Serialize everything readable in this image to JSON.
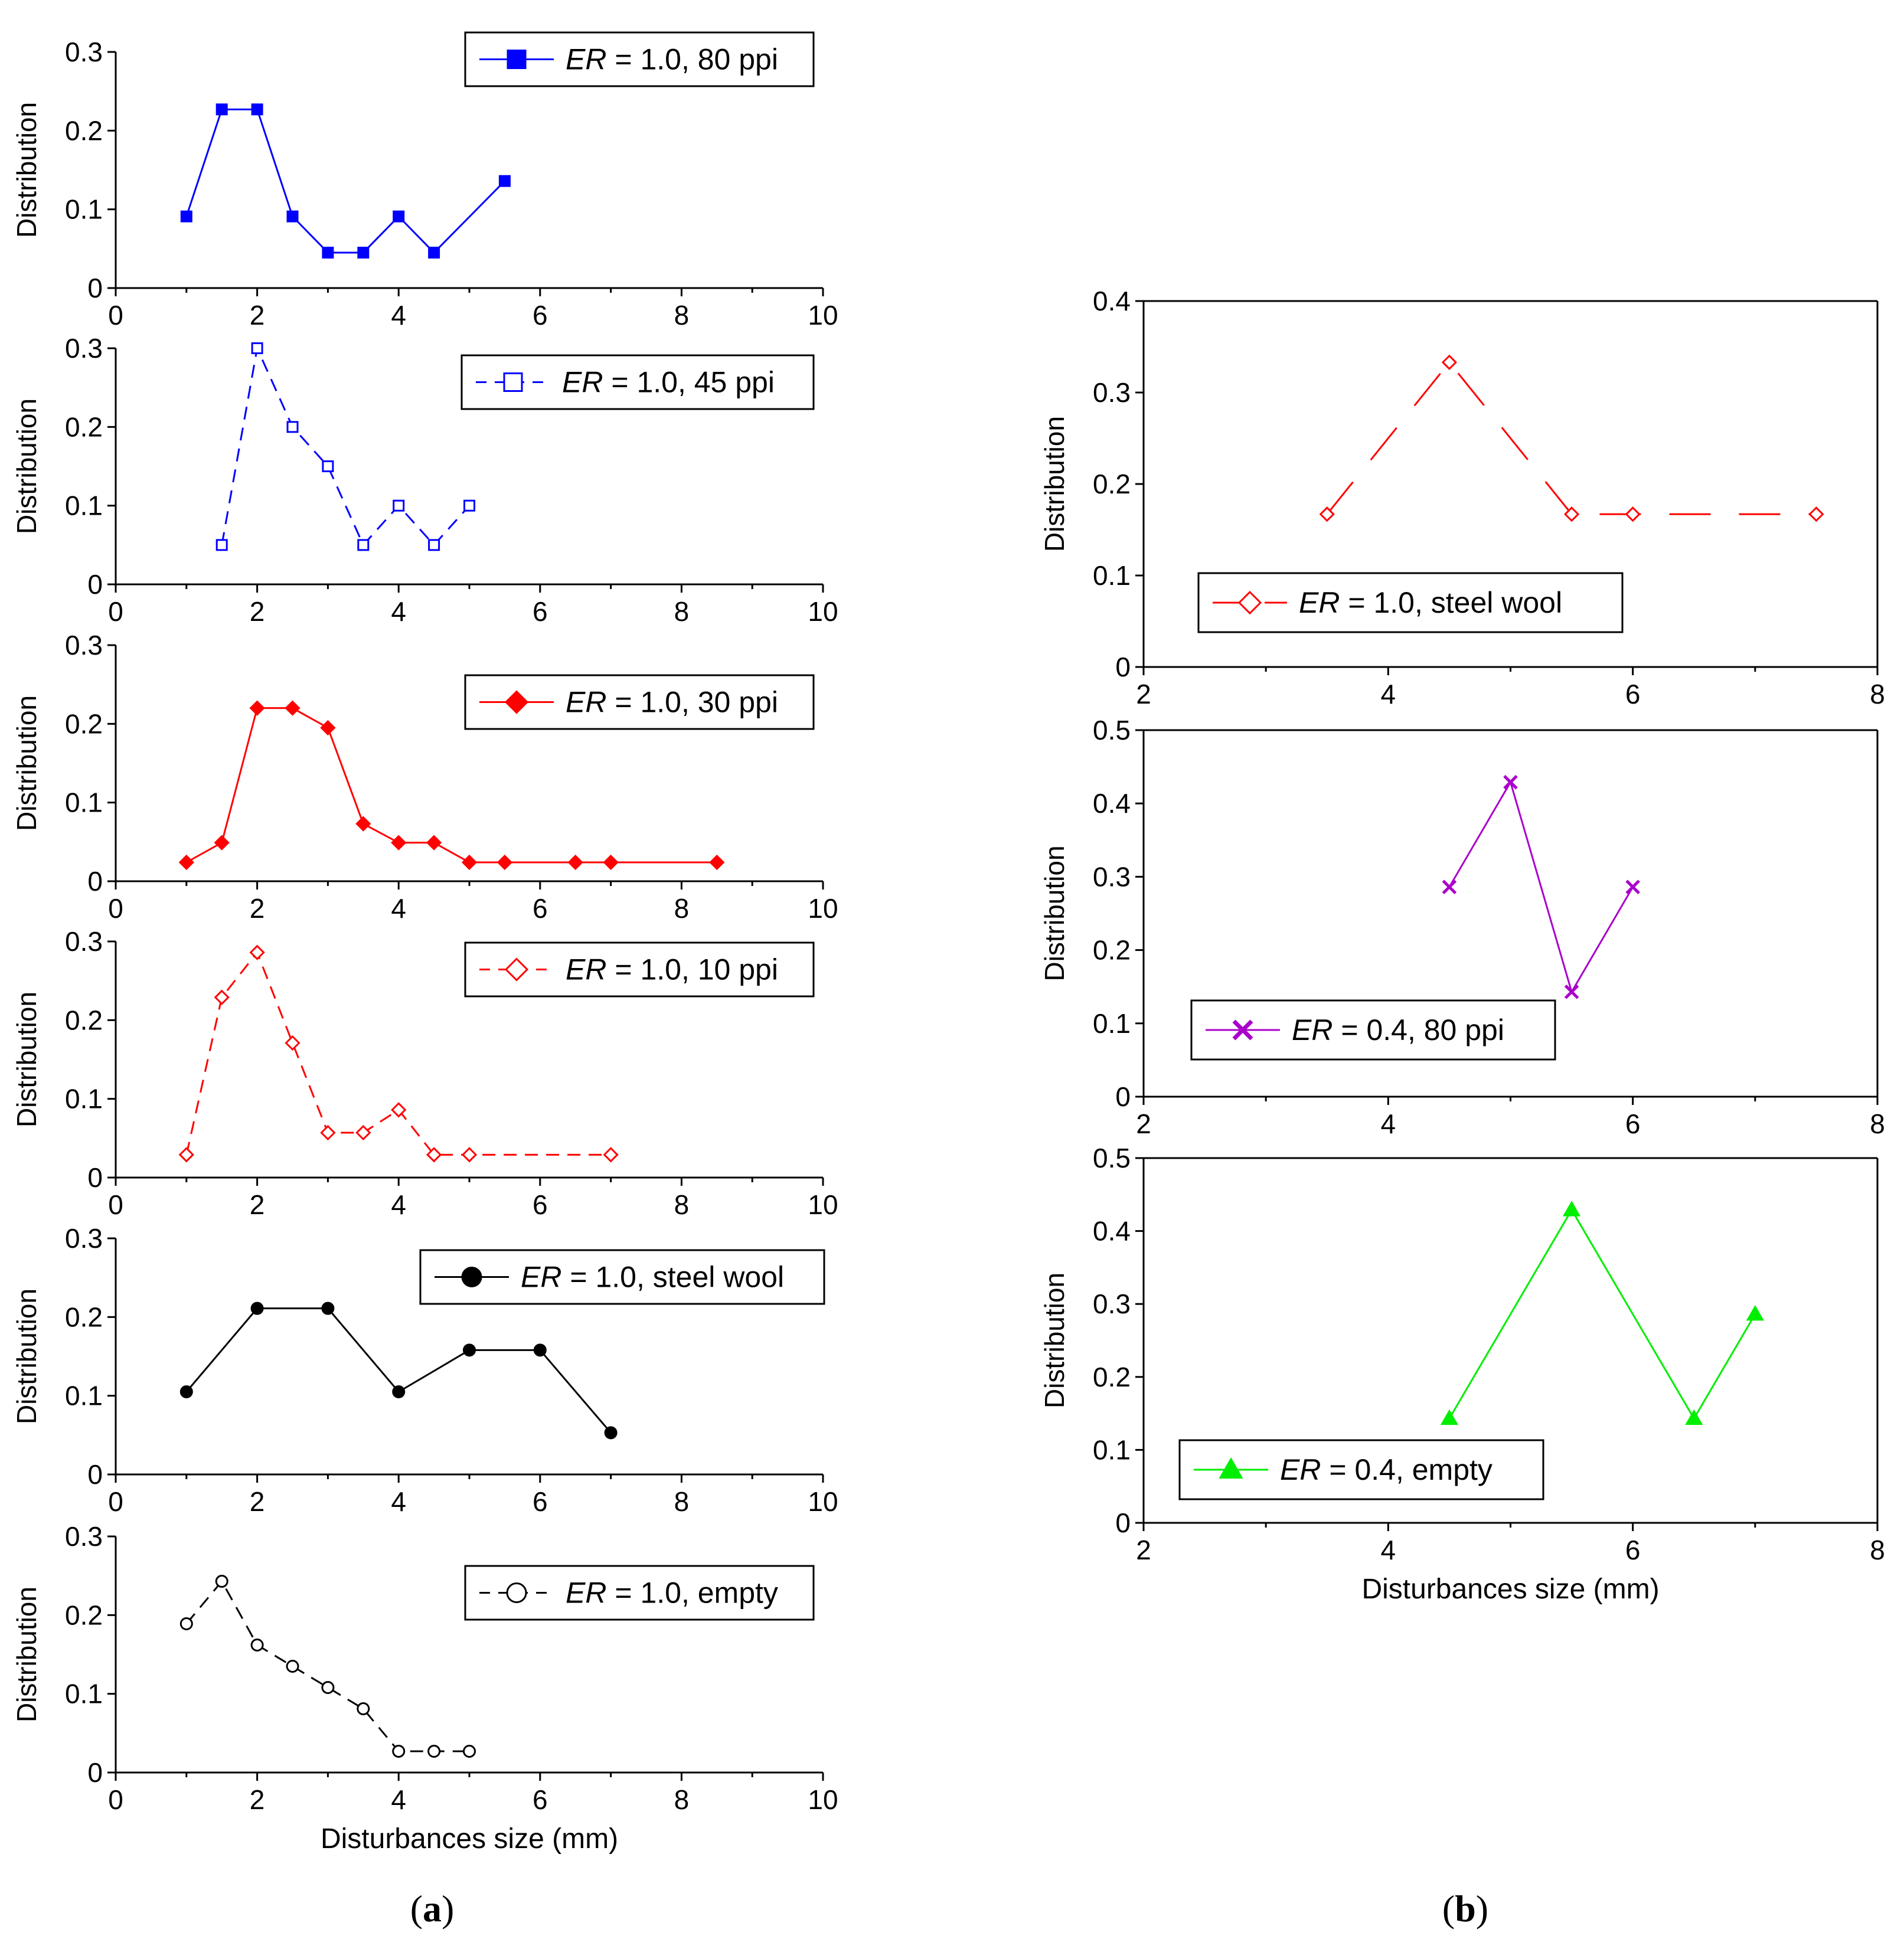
{
  "chart_data": [
    {
      "type": "line",
      "panel": "a",
      "series": [
        {
          "name": "ER = 1.0, 80 ppi",
          "x": [
            1,
            1.5,
            2,
            2.5,
            3,
            3.5,
            4,
            4.5,
            5.5
          ],
          "y": [
            0.091,
            0.227,
            0.227,
            0.091,
            0.045,
            0.045,
            0.091,
            0.045,
            0.136
          ],
          "color": "#0000ff",
          "dash": "solid",
          "marker": "square-filled"
        }
      ],
      "legend": {
        "prefix": "ER",
        "rest": " = 1.0, 80 ppi"
      },
      "legend_position": "top-right",
      "xlabel": "",
      "ylabel": "Distribution",
      "xlim": [
        0,
        10
      ],
      "ylim": [
        0,
        0.3
      ],
      "xticks": [
        0,
        2,
        4,
        6,
        8,
        10
      ],
      "yticks": [
        0,
        0.1,
        0.2,
        0.3
      ],
      "xtick_labels": [
        "0",
        "2",
        "4",
        "6",
        "8",
        "10"
      ],
      "ytick_labels": [
        "0",
        "0.1",
        "0.2",
        "0.3"
      ]
    },
    {
      "type": "line",
      "panel": "a",
      "series": [
        {
          "name": "ER = 1.0, 45 ppi",
          "x": [
            1.5,
            2,
            2.5,
            3,
            3.5,
            4,
            4.5,
            5
          ],
          "y": [
            0.05,
            0.3,
            0.2,
            0.15,
            0.05,
            0.1,
            0.05,
            0.1
          ],
          "color": "#0000ff",
          "dash": "dashed",
          "marker": "square-open"
        }
      ],
      "legend": {
        "prefix": "ER",
        "rest": " = 1.0, 45 ppi"
      },
      "legend_position": "top-right",
      "xlabel": "",
      "ylabel": "Distribution",
      "xlim": [
        0,
        10
      ],
      "ylim": [
        0,
        0.3
      ],
      "xticks": [
        0,
        2,
        4,
        6,
        8,
        10
      ],
      "yticks": [
        0,
        0.1,
        0.2,
        0.3
      ],
      "xtick_labels": [
        "0",
        "2",
        "4",
        "6",
        "8",
        "10"
      ],
      "ytick_labels": [
        "0",
        "0.1",
        "0.2",
        "0.3"
      ]
    },
    {
      "type": "line",
      "panel": "a",
      "series": [
        {
          "name": "ER = 1.0, 30 ppi",
          "x": [
            1,
            1.5,
            2,
            2.5,
            3,
            3.5,
            4,
            4.5,
            5,
            5.5,
            6.5,
            7,
            8.5
          ],
          "y": [
            0.024,
            0.049,
            0.22,
            0.22,
            0.195,
            0.073,
            0.049,
            0.049,
            0.024,
            0.024,
            0.024,
            0.024,
            0.024
          ],
          "color": "#ff0000",
          "dash": "solid",
          "marker": "diamond-filled"
        }
      ],
      "legend": {
        "prefix": "ER",
        "rest": " = 1.0, 30 ppi"
      },
      "legend_position": "top-right",
      "xlabel": "",
      "ylabel": "Distribution",
      "xlim": [
        0,
        10
      ],
      "ylim": [
        0,
        0.3
      ],
      "xticks": [
        0,
        2,
        4,
        6,
        8,
        10
      ],
      "yticks": [
        0,
        0.1,
        0.2,
        0.3
      ],
      "xtick_labels": [
        "0",
        "2",
        "4",
        "6",
        "8",
        "10"
      ],
      "ytick_labels": [
        "0",
        "0.1",
        "0.2",
        "0.3"
      ]
    },
    {
      "type": "line",
      "panel": "a",
      "series": [
        {
          "name": "ER = 1.0, 10 ppi",
          "x": [
            1,
            1.5,
            2,
            2.5,
            3,
            3.5,
            4,
            4.5,
            5,
            7
          ],
          "y": [
            0.029,
            0.229,
            0.286,
            0.171,
            0.057,
            0.057,
            0.086,
            0.029,
            0.029,
            0.029
          ],
          "color": "#ff0000",
          "dash": "dashed",
          "marker": "diamond-open"
        }
      ],
      "legend": {
        "prefix": "ER",
        "rest": " = 1.0, 10 ppi"
      },
      "legend_position": "top-right",
      "xlabel": "",
      "ylabel": "Distribution",
      "xlim": [
        0,
        10
      ],
      "ylim": [
        0,
        0.3
      ],
      "xticks": [
        0,
        2,
        4,
        6,
        8,
        10
      ],
      "yticks": [
        0,
        0.1,
        0.2,
        0.3
      ],
      "xtick_labels": [
        "0",
        "2",
        "4",
        "6",
        "8",
        "10"
      ],
      "ytick_labels": [
        "0",
        "0.1",
        "0.2",
        "0.3"
      ]
    },
    {
      "type": "line",
      "panel": "a",
      "series": [
        {
          "name": "ER = 1.0, steel wool",
          "x": [
            1,
            2,
            3,
            4,
            5,
            6,
            7
          ],
          "y": [
            0.105,
            0.211,
            0.211,
            0.105,
            0.158,
            0.158,
            0.053
          ],
          "color": "#000000",
          "dash": "solid",
          "marker": "circle-filled"
        }
      ],
      "legend": {
        "prefix": "ER",
        "rest": " = 1.0, steel wool"
      },
      "legend_position": "top-right",
      "xlabel": "",
      "ylabel": "Distribution",
      "xlim": [
        0,
        10
      ],
      "ylim": [
        0,
        0.3
      ],
      "xticks": [
        0,
        2,
        4,
        6,
        8,
        10
      ],
      "yticks": [
        0,
        0.1,
        0.2,
        0.3
      ],
      "xtick_labels": [
        "0",
        "2",
        "4",
        "6",
        "8",
        "10"
      ],
      "ytick_labels": [
        "0",
        "0.1",
        "0.2",
        "0.3"
      ]
    },
    {
      "type": "line",
      "panel": "a",
      "series": [
        {
          "name": "ER = 1.0, empty",
          "x": [
            1,
            1.5,
            2,
            2.5,
            3,
            3.5,
            4,
            4.5,
            5
          ],
          "y": [
            0.189,
            0.243,
            0.162,
            0.135,
            0.108,
            0.081,
            0.027,
            0.027,
            0.027
          ],
          "color": "#000000",
          "dash": "dashed",
          "marker": "circle-open"
        }
      ],
      "legend": {
        "prefix": "ER",
        "rest": " = 1.0, empty"
      },
      "legend_position": "top-right",
      "xlabel": "Disturbances size (mm)",
      "ylabel": "Distribution",
      "xlim": [
        0,
        10
      ],
      "ylim": [
        0,
        0.3
      ],
      "xticks": [
        0,
        2,
        4,
        6,
        8,
        10
      ],
      "yticks": [
        0,
        0.1,
        0.2,
        0.3
      ],
      "xtick_labels": [
        "0",
        "2",
        "4",
        "6",
        "8",
        "10"
      ],
      "ytick_labels": [
        "0",
        "0.1",
        "0.2",
        "0.3"
      ]
    },
    {
      "type": "line",
      "panel": "b",
      "series": [
        {
          "name": "ER = 1.0, steel wool",
          "x": [
            3.5,
            4.5,
            5.5,
            6,
            7.5
          ],
          "y": [
            0.167,
            0.333,
            0.167,
            0.167,
            0.167
          ],
          "color": "#ff0000",
          "dash": "longdash",
          "marker": "diamond-open"
        }
      ],
      "legend": {
        "prefix": "ER",
        "rest": " = 1.0, steel wool"
      },
      "legend_position": "bottom-left",
      "xlabel": "",
      "ylabel": "Distribution",
      "xlim": [
        2,
        8
      ],
      "ylim": [
        0,
        0.4
      ],
      "xticks": [
        2,
        4,
        6,
        8
      ],
      "yticks": [
        0,
        0.1,
        0.2,
        0.3,
        0.4
      ],
      "xtick_labels": [
        "2",
        "4",
        "6",
        "8"
      ],
      "ytick_labels": [
        "0",
        "0.1",
        "0.2",
        "0.3",
        "0.4"
      ]
    },
    {
      "type": "line",
      "panel": "b",
      "series": [
        {
          "name": "ER = 0.4, 80 ppi",
          "x": [
            4.5,
            5,
            5.5,
            6
          ],
          "y": [
            0.286,
            0.429,
            0.143,
            0.286
          ],
          "color": "#aa00cc",
          "dash": "solid",
          "marker": "x"
        }
      ],
      "legend": {
        "prefix": "ER",
        "rest": " = 0.4, 80 ppi"
      },
      "legend_position": "bottom-left",
      "xlabel": "",
      "ylabel": "Distribution",
      "xlim": [
        2,
        8
      ],
      "ylim": [
        0,
        0.5
      ],
      "xticks": [
        2,
        4,
        6,
        8
      ],
      "yticks": [
        0,
        0.1,
        0.2,
        0.3,
        0.4,
        0.5
      ],
      "xtick_labels": [
        "2",
        "4",
        "6",
        "8"
      ],
      "ytick_labels": [
        "0",
        "0.1",
        "0.2",
        "0.3",
        "0.4",
        "0.5"
      ]
    },
    {
      "type": "line",
      "panel": "b",
      "series": [
        {
          "name": "ER = 0.4, empty",
          "x": [
            4.5,
            5.5,
            6.5,
            7
          ],
          "y": [
            0.143,
            0.429,
            0.143,
            0.286
          ],
          "color": "#00ee00",
          "dash": "solid",
          "marker": "triangle-filled"
        }
      ],
      "legend": {
        "prefix": "ER",
        "rest": " = 0.4, empty"
      },
      "legend_position": "bottom-left",
      "xlabel": "Disturbances size (mm)",
      "ylabel": "Distribution",
      "xlim": [
        2,
        8
      ],
      "ylim": [
        0,
        0.5
      ],
      "xticks": [
        2,
        4,
        6,
        8
      ],
      "yticks": [
        0,
        0.1,
        0.2,
        0.3,
        0.4,
        0.5
      ],
      "xtick_labels": [
        "2",
        "4",
        "6",
        "8"
      ],
      "ytick_labels": [
        "0",
        "0.1",
        "0.2",
        "0.3",
        "0.4",
        "0.5"
      ]
    }
  ],
  "captions": {
    "a": "a",
    "b": "b"
  }
}
